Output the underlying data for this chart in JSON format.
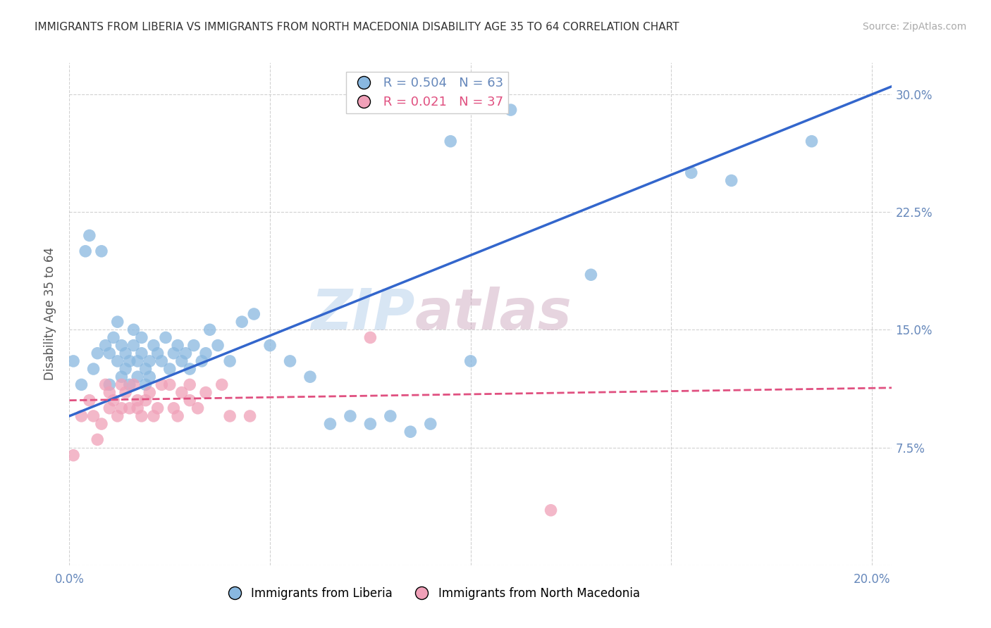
{
  "title": "IMMIGRANTS FROM LIBERIA VS IMMIGRANTS FROM NORTH MACEDONIA DISABILITY AGE 35 TO 64 CORRELATION CHART",
  "source": "Source: ZipAtlas.com",
  "ylabel": "Disability Age 35 to 64",
  "xlim": [
    0.0,
    0.205
  ],
  "ylim": [
    0.0,
    0.32
  ],
  "xticks": [
    0.0,
    0.05,
    0.1,
    0.15,
    0.2
  ],
  "xticklabels": [
    "0.0%",
    "",
    "",
    "",
    "20.0%"
  ],
  "yticks": [
    0.0,
    0.075,
    0.15,
    0.225,
    0.3
  ],
  "right_yticks": [
    0.075,
    0.15,
    0.225,
    0.3
  ],
  "right_yticklabels": [
    "7.5%",
    "15.0%",
    "22.5%",
    "30.0%"
  ],
  "watermark_zip": "ZIP",
  "watermark_atlas": "atlas",
  "legend_r1": "R = 0.504",
  "legend_n1": "N = 63",
  "legend_r2": "R = 0.021",
  "legend_n2": "N = 37",
  "color_liberia": "#89b8e0",
  "color_macedonia": "#f0a0b8",
  "trendline_liberia_color": "#3366cc",
  "trendline_macedonia_color": "#e05080",
  "axis_color": "#6688bb",
  "grid_color": "#cccccc",
  "liberia_x": [
    0.001,
    0.003,
    0.004,
    0.005,
    0.006,
    0.007,
    0.008,
    0.009,
    0.01,
    0.01,
    0.011,
    0.012,
    0.012,
    0.013,
    0.013,
    0.014,
    0.014,
    0.015,
    0.015,
    0.016,
    0.016,
    0.017,
    0.017,
    0.018,
    0.018,
    0.019,
    0.019,
    0.02,
    0.02,
    0.021,
    0.022,
    0.023,
    0.024,
    0.025,
    0.026,
    0.027,
    0.028,
    0.029,
    0.03,
    0.031,
    0.033,
    0.034,
    0.035,
    0.037,
    0.04,
    0.043,
    0.046,
    0.05,
    0.055,
    0.06,
    0.065,
    0.07,
    0.075,
    0.08,
    0.085,
    0.09,
    0.095,
    0.1,
    0.11,
    0.13,
    0.155,
    0.165,
    0.185
  ],
  "liberia_y": [
    0.13,
    0.115,
    0.2,
    0.21,
    0.125,
    0.135,
    0.2,
    0.14,
    0.115,
    0.135,
    0.145,
    0.155,
    0.13,
    0.12,
    0.14,
    0.125,
    0.135,
    0.115,
    0.13,
    0.14,
    0.15,
    0.12,
    0.13,
    0.135,
    0.145,
    0.125,
    0.115,
    0.13,
    0.12,
    0.14,
    0.135,
    0.13,
    0.145,
    0.125,
    0.135,
    0.14,
    0.13,
    0.135,
    0.125,
    0.14,
    0.13,
    0.135,
    0.15,
    0.14,
    0.13,
    0.155,
    0.16,
    0.14,
    0.13,
    0.12,
    0.09,
    0.095,
    0.09,
    0.095,
    0.085,
    0.09,
    0.27,
    0.13,
    0.29,
    0.185,
    0.25,
    0.245,
    0.27
  ],
  "macedonia_x": [
    0.001,
    0.003,
    0.005,
    0.006,
    0.007,
    0.008,
    0.009,
    0.01,
    0.01,
    0.011,
    0.012,
    0.013,
    0.013,
    0.014,
    0.015,
    0.016,
    0.017,
    0.017,
    0.018,
    0.019,
    0.02,
    0.021,
    0.022,
    0.023,
    0.025,
    0.026,
    0.027,
    0.028,
    0.03,
    0.03,
    0.032,
    0.034,
    0.038,
    0.04,
    0.045,
    0.075,
    0.12
  ],
  "macedonia_y": [
    0.07,
    0.095,
    0.105,
    0.095,
    0.08,
    0.09,
    0.115,
    0.1,
    0.11,
    0.105,
    0.095,
    0.115,
    0.1,
    0.11,
    0.1,
    0.115,
    0.1,
    0.105,
    0.095,
    0.105,
    0.11,
    0.095,
    0.1,
    0.115,
    0.115,
    0.1,
    0.095,
    0.11,
    0.105,
    0.115,
    0.1,
    0.11,
    0.115,
    0.095,
    0.095,
    0.145,
    0.035
  ],
  "trendline_lib_x0": 0.0,
  "trendline_lib_x1": 0.205,
  "trendline_lib_y0": 0.095,
  "trendline_lib_y1": 0.305,
  "trendline_mac_x0": 0.0,
  "trendline_mac_x1": 0.205,
  "trendline_mac_y0": 0.105,
  "trendline_mac_y1": 0.113
}
